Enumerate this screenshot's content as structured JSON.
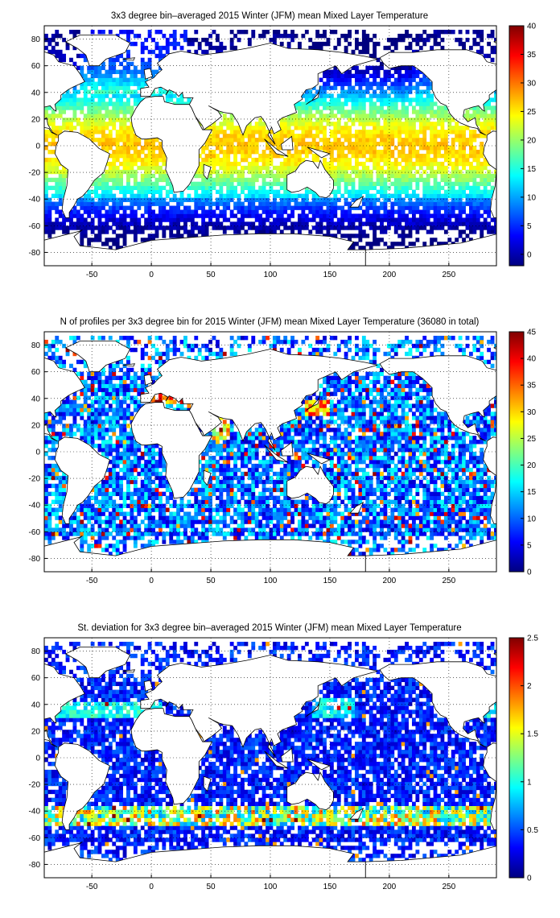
{
  "chart_data": [
    {
      "type": "heatmap",
      "title": "3x3 degree bin–averaged 2015 Winter (JFM) mean Mixed Layer Temperature",
      "xlim": [
        -90,
        290
      ],
      "ylim": [
        -90,
        90
      ],
      "x_ticks": [
        -50,
        0,
        50,
        100,
        150,
        200,
        250
      ],
      "y_ticks": [
        80,
        60,
        40,
        20,
        0,
        -20,
        -40,
        -60,
        -80
      ],
      "colorbar": {
        "min": -2,
        "max": 40,
        "ticks": [
          40,
          35,
          30,
          25,
          20,
          15,
          10,
          5,
          0
        ]
      },
      "field": "mean",
      "bin_size_deg": 3,
      "grid": true
    },
    {
      "type": "heatmap",
      "title": "N of profiles per 3x3 degree bin for 2015 Winter (JFM) mean Mixed Layer Temperature  (36080 in total)",
      "xlim": [
        -90,
        290
      ],
      "ylim": [
        -90,
        90
      ],
      "x_ticks": [
        -50,
        0,
        50,
        100,
        150,
        200,
        250
      ],
      "y_ticks": [
        80,
        60,
        40,
        20,
        0,
        -20,
        -40,
        -60,
        -80
      ],
      "colorbar": {
        "min": 0,
        "max": 45,
        "ticks": [
          45,
          40,
          35,
          30,
          25,
          20,
          15,
          10,
          5,
          0
        ]
      },
      "field": "count",
      "bin_size_deg": 3,
      "grid": true
    },
    {
      "type": "heatmap",
      "title": "St. deviation for 3x3 degree bin–averaged 2015 Winter (JFM) mean Mixed Layer Temperature",
      "xlim": [
        -90,
        290
      ],
      "ylim": [
        -90,
        90
      ],
      "x_ticks": [
        -50,
        0,
        50,
        100,
        150,
        200,
        250
      ],
      "y_ticks": [
        80,
        60,
        40,
        20,
        0,
        -20,
        -40,
        -60,
        -80
      ],
      "colorbar": {
        "min": 0,
        "max": 2.5,
        "ticks": [
          2.5,
          2,
          1.5,
          1,
          0.5,
          0
        ]
      },
      "field": "std",
      "bin_size_deg": 3,
      "grid": true
    }
  ]
}
